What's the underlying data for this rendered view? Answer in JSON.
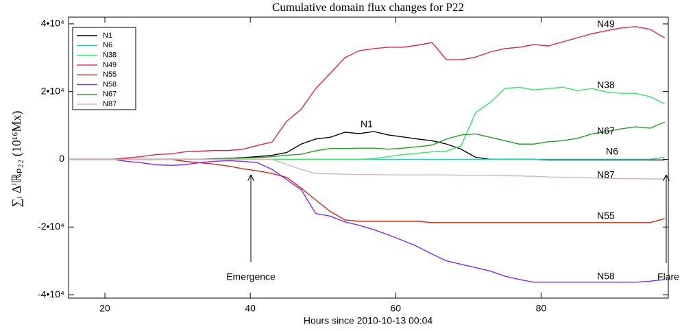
{
  "chart_data": {
    "type": "line",
    "title": "Cumulative domain flux changes for P22",
    "xlabel": "Hours since 2010-10-13 00:04",
    "ylabel": "∑ᵢ Δⁱℝₚ₂₂   (10¹⁶Mx)",
    "xlim": [
      15,
      97.5
    ],
    "ylim": [
      -41000,
      42000
    ],
    "xticks": [
      20,
      40,
      60,
      80
    ],
    "yticks": [
      {
        "value": -40000,
        "label": "-4•10⁴"
      },
      {
        "value": -20000,
        "label": "-2•10⁴"
      },
      0,
      {
        "value": 20000,
        "label": "2•10⁴"
      },
      {
        "value": 40000,
        "label": "4•10⁴"
      }
    ],
    "legend": "upper left",
    "x": [
      15,
      17,
      19,
      21,
      23,
      25,
      27,
      29,
      31,
      33,
      35,
      37,
      39,
      41,
      43,
      45,
      47,
      49,
      51,
      53,
      55,
      57,
      59,
      61,
      63,
      65,
      67,
      69,
      71,
      73,
      75,
      77,
      79,
      81,
      83,
      85,
      87,
      89,
      91,
      93,
      95,
      97
    ],
    "series": [
      {
        "name": "N1",
        "color": "#000000",
        "values": [
          0,
          0,
          0,
          0,
          0,
          0,
          0,
          0,
          0,
          0,
          0,
          300,
          500,
          800,
          1200,
          2000,
          4500,
          6000,
          6500,
          8000,
          7600,
          8200,
          7200,
          6600,
          6000,
          5500,
          4500,
          3000,
          600,
          0,
          0,
          0,
          0,
          -200,
          -200,
          -200,
          -200,
          -200,
          -200,
          -200,
          -200,
          -200
        ]
      },
      {
        "name": "N6",
        "color": "#20c8c0",
        "values": [
          0,
          0,
          0,
          0,
          0,
          0,
          0,
          0,
          0,
          0,
          0,
          0,
          0,
          0,
          0,
          0,
          0,
          0,
          0,
          0,
          0,
          0,
          0,
          0,
          0,
          0,
          0,
          0,
          0,
          0,
          0,
          0,
          0,
          0,
          0,
          0,
          0,
          0,
          0,
          0,
          0,
          600
        ]
      },
      {
        "name": "N38",
        "color": "#30e860",
        "values": [
          0,
          0,
          0,
          0,
          0,
          0,
          0,
          0,
          0,
          0,
          0,
          0,
          0,
          0,
          0,
          0,
          0,
          0,
          0,
          0,
          0,
          200,
          800,
          1400,
          1800,
          2200,
          2400,
          4000,
          13800,
          16800,
          20900,
          21300,
          20500,
          20900,
          21300,
          20300,
          20900,
          19900,
          19500,
          19500,
          18500,
          16400
        ]
      },
      {
        "name": "N49",
        "color": "#e8204c",
        "values": [
          0,
          0,
          0,
          0,
          400,
          800,
          1400,
          1600,
          2200,
          2400,
          2600,
          2600,
          3000,
          4100,
          5100,
          11200,
          14800,
          20900,
          25400,
          30000,
          32100,
          32700,
          33100,
          33100,
          33700,
          34500,
          29400,
          29400,
          30200,
          31700,
          32700,
          33100,
          33900,
          33500,
          34700,
          35900,
          37100,
          38000,
          38800,
          39200,
          38400,
          35900
        ]
      },
      {
        "name": "N55",
        "color": "#e82010",
        "values": [
          0,
          0,
          0,
          0,
          0,
          0,
          0,
          0,
          -600,
          -1000,
          -1400,
          -2000,
          -2800,
          -3400,
          -4200,
          -5300,
          -8500,
          -12000,
          -15400,
          -17900,
          -18300,
          -18300,
          -18300,
          -18300,
          -18300,
          -18700,
          -18700,
          -18700,
          -18700,
          -18700,
          -18700,
          -18700,
          -18700,
          -18700,
          -18700,
          -18700,
          -18700,
          -18700,
          -18700,
          -18700,
          -18700,
          -17500
        ]
      },
      {
        "name": "N58",
        "color": "#8028f0",
        "values": [
          0,
          0,
          0,
          0,
          -600,
          -1000,
          -1600,
          -1800,
          -1600,
          -1000,
          -600,
          -400,
          -600,
          -1000,
          -3000,
          -6000,
          -9000,
          -16000,
          -16800,
          -18500,
          -19500,
          -20800,
          -22300,
          -24000,
          -25800,
          -28000,
          -30000,
          -31000,
          -32000,
          -33000,
          -34500,
          -35500,
          -36300,
          -36300,
          -36300,
          -36300,
          -36300,
          -36300,
          -36300,
          -36300,
          -36000,
          -35500
        ]
      },
      {
        "name": "N67",
        "color": "#20a020",
        "values": [
          0,
          0,
          0,
          0,
          0,
          0,
          0,
          0,
          0,
          0,
          200,
          300,
          400,
          500,
          800,
          1200,
          1500,
          2500,
          3200,
          3200,
          3300,
          3300,
          3000,
          3300,
          3700,
          4200,
          6000,
          7200,
          7500,
          6500,
          5500,
          4500,
          4500,
          5200,
          5500,
          6200,
          7500,
          8200,
          9000,
          9600,
          9200,
          11000
        ]
      },
      {
        "name": "N87",
        "color": "#d4b4b4",
        "values": [
          0,
          0,
          0,
          0,
          0,
          0,
          0,
          0,
          0,
          0,
          0,
          0,
          0,
          0,
          0,
          -1500,
          -3000,
          -4200,
          -4300,
          -4400,
          -4500,
          -4500,
          -4600,
          -4600,
          -4600,
          -4600,
          -4600,
          -4700,
          -4700,
          -4700,
          -4800,
          -4900,
          -5000,
          -5200,
          -5300,
          -5400,
          -5500,
          -5600,
          -5700,
          -5700,
          -5800,
          -5800
        ]
      }
    ],
    "annotations": [
      "N49",
      "N38",
      "N1",
      "N67",
      "N6",
      "N87",
      "N55",
      "N58",
      "Emergence",
      "Flare"
    ]
  }
}
